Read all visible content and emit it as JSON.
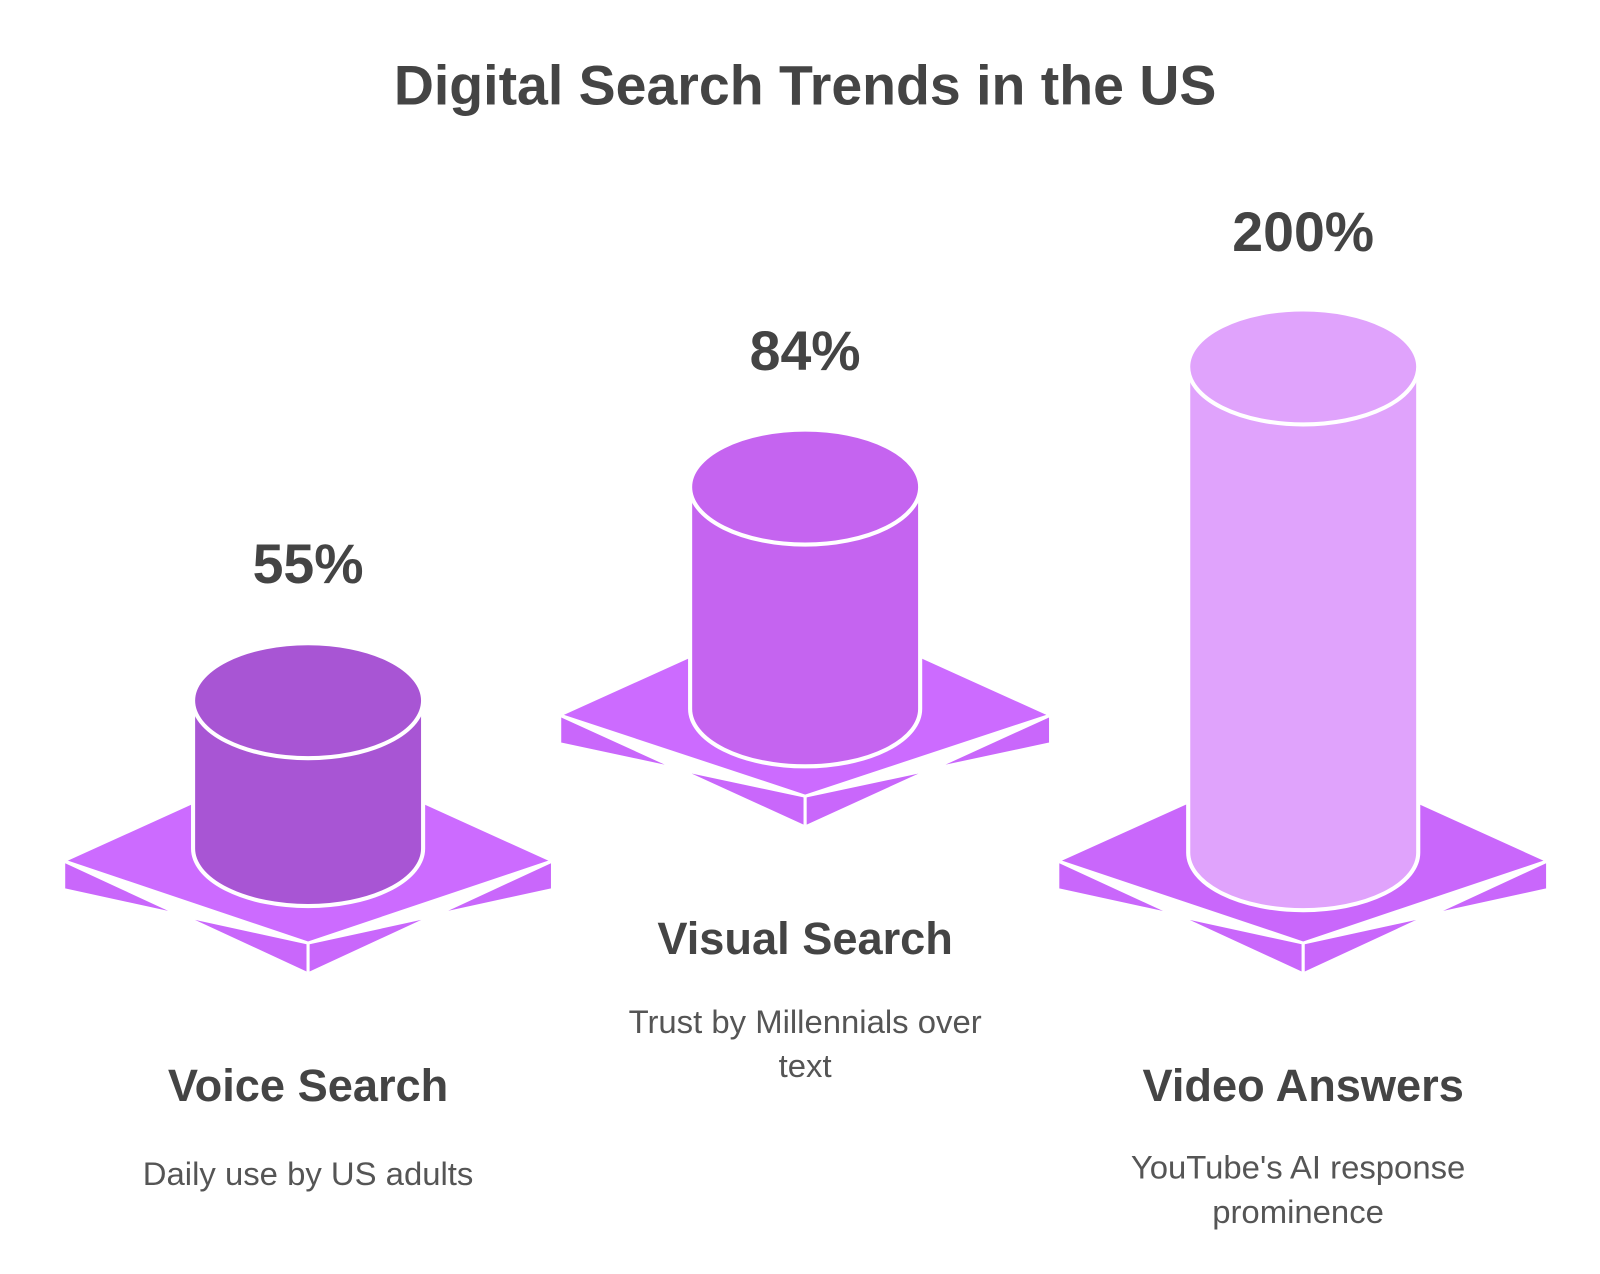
{
  "title": "Digital Search Trends in the US",
  "items": [
    {
      "value": "55%",
      "name": "Voice Search",
      "description": [
        "Daily use by US adults"
      ]
    },
    {
      "value": "84%",
      "name": "Visual Search",
      "description": [
        "Trust by Millennials over",
        "text"
      ]
    },
    {
      "value": "200%",
      "name": "Video Answers",
      "description": [
        "YouTube's AI response",
        "prominence"
      ]
    }
  ]
}
